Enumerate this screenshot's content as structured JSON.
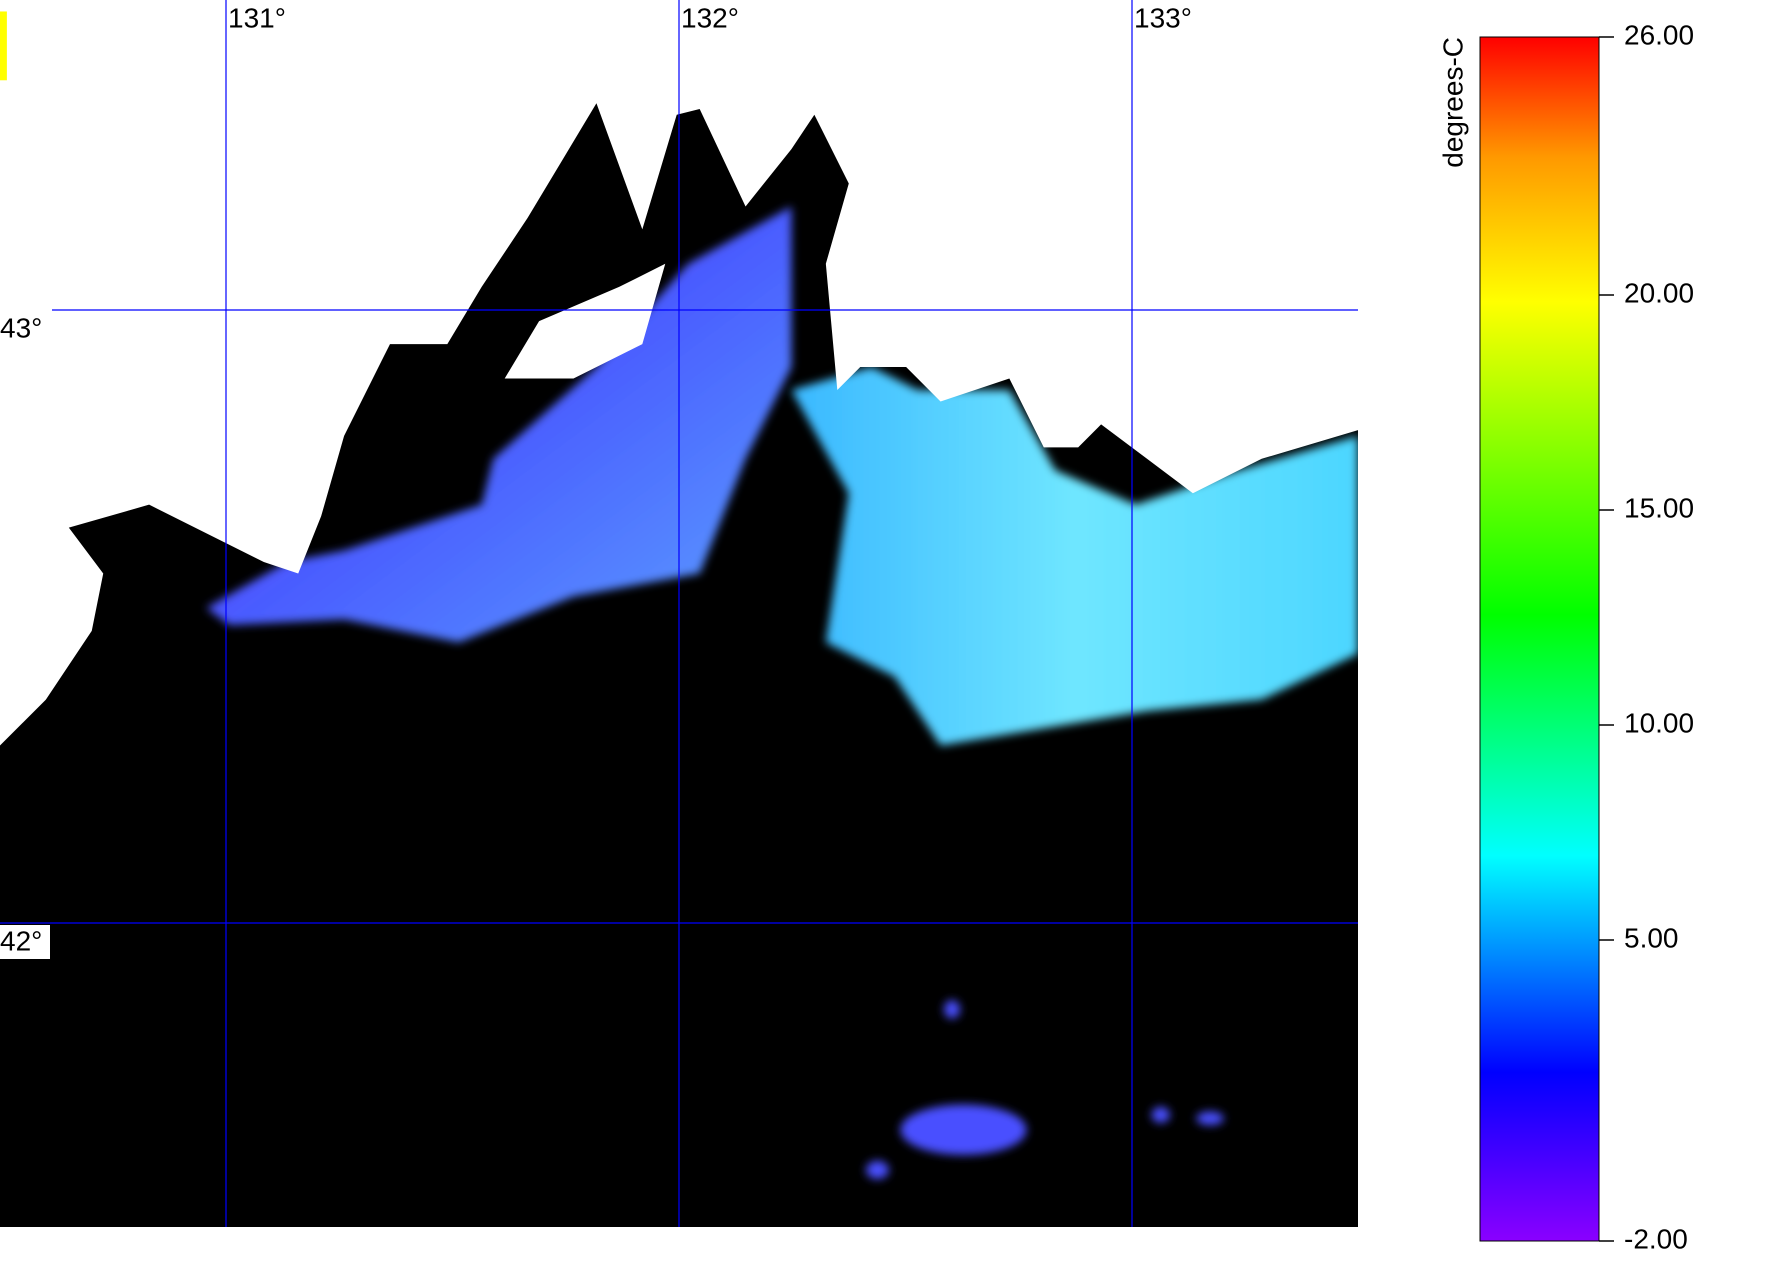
{
  "map": {
    "lon_ticks": [
      {
        "value": 131,
        "label": "131°"
      },
      {
        "value": 132,
        "label": "132°"
      },
      {
        "value": 133,
        "label": "133°"
      }
    ],
    "lat_ticks": [
      {
        "value": 43,
        "label": "43°"
      },
      {
        "value": 42,
        "label": "42°"
      }
    ]
  },
  "colorbar": {
    "label": "degrees-C",
    "range": [
      -2,
      26
    ],
    "ticks": [
      {
        "value": 26,
        "label": "26.00"
      },
      {
        "value": 20,
        "label": "20.00"
      },
      {
        "value": 15,
        "label": "15.00"
      },
      {
        "value": 10,
        "label": "10.00"
      },
      {
        "value": 5,
        "label": "5.00"
      },
      {
        "value": -2,
        "label": "-2.00"
      }
    ]
  }
}
